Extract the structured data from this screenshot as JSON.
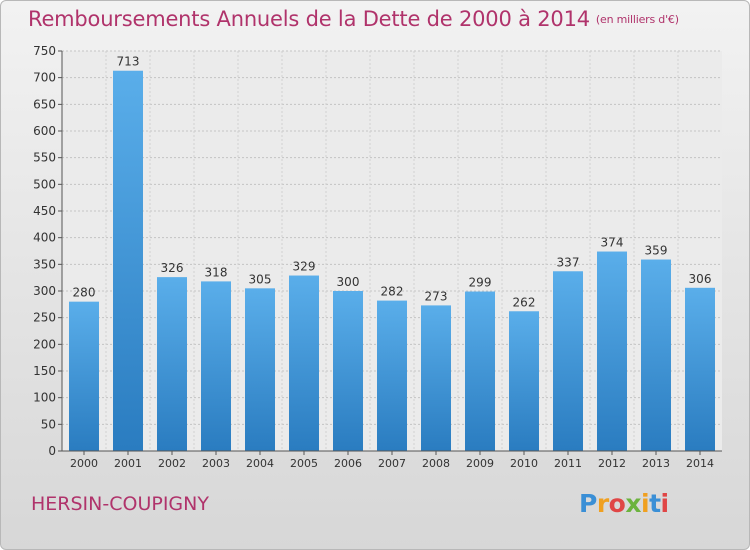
{
  "title": "Remboursements Annuels de la Dette de 2000 à 2014",
  "subtitle": "(en milliers d'€)",
  "place": "HERSIN-COUPIGNY",
  "logo": {
    "letters": [
      {
        "char": "P",
        "color": "#3a8fd6"
      },
      {
        "char": "r",
        "color": "#f0a020"
      },
      {
        "char": "o",
        "color": "#e04646"
      },
      {
        "char": "x",
        "color": "#6cb33e"
      },
      {
        "char": "i",
        "color": "#f0a020"
      },
      {
        "char": "t",
        "color": "#3a8fd6"
      },
      {
        "char": "i",
        "color": "#e04646"
      }
    ]
  },
  "colors": {
    "title": "#b0336b",
    "bar_light": "#5aaeea",
    "bar_dark": "#2a7cc0"
  },
  "chart_data": {
    "type": "bar",
    "categories": [
      "2000",
      "2001",
      "2002",
      "2003",
      "2004",
      "2005",
      "2006",
      "2007",
      "2008",
      "2009",
      "2010",
      "2011",
      "2012",
      "2013",
      "2014"
    ],
    "values": [
      280,
      713,
      326,
      318,
      305,
      329,
      300,
      282,
      273,
      299,
      262,
      337,
      374,
      359,
      306
    ],
    "ylim": [
      0,
      750
    ],
    "yticks": [
      0,
      50,
      100,
      150,
      200,
      250,
      300,
      350,
      400,
      450,
      500,
      550,
      600,
      650,
      700,
      750
    ],
    "grid": true,
    "data_labels": true
  }
}
